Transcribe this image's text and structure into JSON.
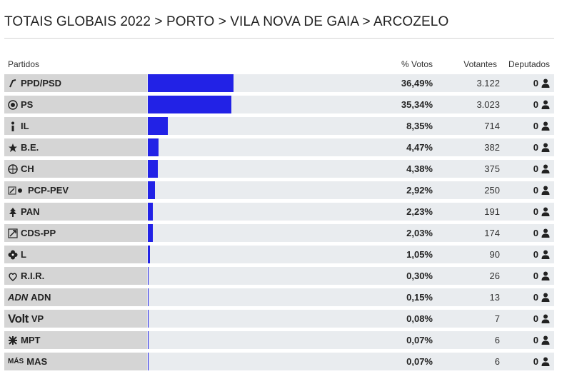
{
  "breadcrumb": "TOTAIS GLOBAIS 2022 > PORTO > VILA NOVA DE GAIA > ARCOZELO",
  "columns": {
    "partidos": "Partidos",
    "votos": "% Votos",
    "votantes": "Votantes",
    "deputados": "Deputados"
  },
  "colors": {
    "bar": "#2222e6",
    "row_bg": "#e9ecef",
    "name_bg": "#d5d5d5"
  },
  "results": [
    {
      "logo_icon": "ppd-psd-arrow-icon",
      "logo_text": "",
      "name": "PPD/PSD",
      "pct": 36.49,
      "pct_label": "36,49%",
      "votes": "3.122",
      "deputies": "0"
    },
    {
      "logo_icon": "ps-fist-icon",
      "logo_text": "",
      "name": "PS",
      "pct": 35.34,
      "pct_label": "35,34%",
      "votes": "3.023",
      "deputies": "0"
    },
    {
      "logo_icon": "il-i-icon",
      "logo_text": "",
      "name": "IL",
      "pct": 8.35,
      "pct_label": "8,35%",
      "votes": "714",
      "deputies": "0"
    },
    {
      "logo_icon": "be-star-icon",
      "logo_text": "",
      "name": "B.E.",
      "pct": 4.47,
      "pct_label": "4,47%",
      "votes": "382",
      "deputies": "0"
    },
    {
      "logo_icon": "ch-globe-icon",
      "logo_text": "",
      "name": "CH",
      "pct": 4.38,
      "pct_label": "4,38%",
      "votes": "375",
      "deputies": "0"
    },
    {
      "logo_icon": "pcp-pev-hammer-sickle-icon",
      "logo_text": "",
      "name": "PCP-PEV",
      "pct": 2.92,
      "pct_label": "2,92%",
      "votes": "250",
      "deputies": "0"
    },
    {
      "logo_icon": "pan-tree-icon",
      "logo_text": "",
      "name": "PAN",
      "pct": 2.23,
      "pct_label": "2,23%",
      "votes": "191",
      "deputies": "0"
    },
    {
      "logo_icon": "cds-pp-arrow-icon",
      "logo_text": "",
      "name": "CDS-PP",
      "pct": 2.03,
      "pct_label": "2,03%",
      "votes": "174",
      "deputies": "0"
    },
    {
      "logo_icon": "livre-flower-icon",
      "logo_text": "",
      "name": "L",
      "pct": 1.05,
      "pct_label": "1,05%",
      "votes": "90",
      "deputies": "0"
    },
    {
      "logo_icon": "rir-heart-icon",
      "logo_text": "",
      "name": "R.I.R.",
      "pct": 0.3,
      "pct_label": "0,30%",
      "votes": "26",
      "deputies": "0"
    },
    {
      "logo_icon": "adn-wordmark-icon",
      "logo_text": "ADN",
      "name": "ADN",
      "pct": 0.15,
      "pct_label": "0,15%",
      "votes": "13",
      "deputies": "0"
    },
    {
      "logo_icon": "volt-wordmark-icon",
      "logo_text": "Volt",
      "name": "VP",
      "pct": 0.08,
      "pct_label": "0,08%",
      "votes": "7",
      "deputies": "0"
    },
    {
      "logo_icon": "mpt-cross-icon",
      "logo_text": "",
      "name": "MPT",
      "pct": 0.07,
      "pct_label": "0,07%",
      "votes": "6",
      "deputies": "0"
    },
    {
      "logo_icon": "mas-wordmark-icon",
      "logo_text": "MÁS",
      "name": "MAS",
      "pct": 0.07,
      "pct_label": "0,07%",
      "votes": "6",
      "deputies": "0"
    }
  ]
}
